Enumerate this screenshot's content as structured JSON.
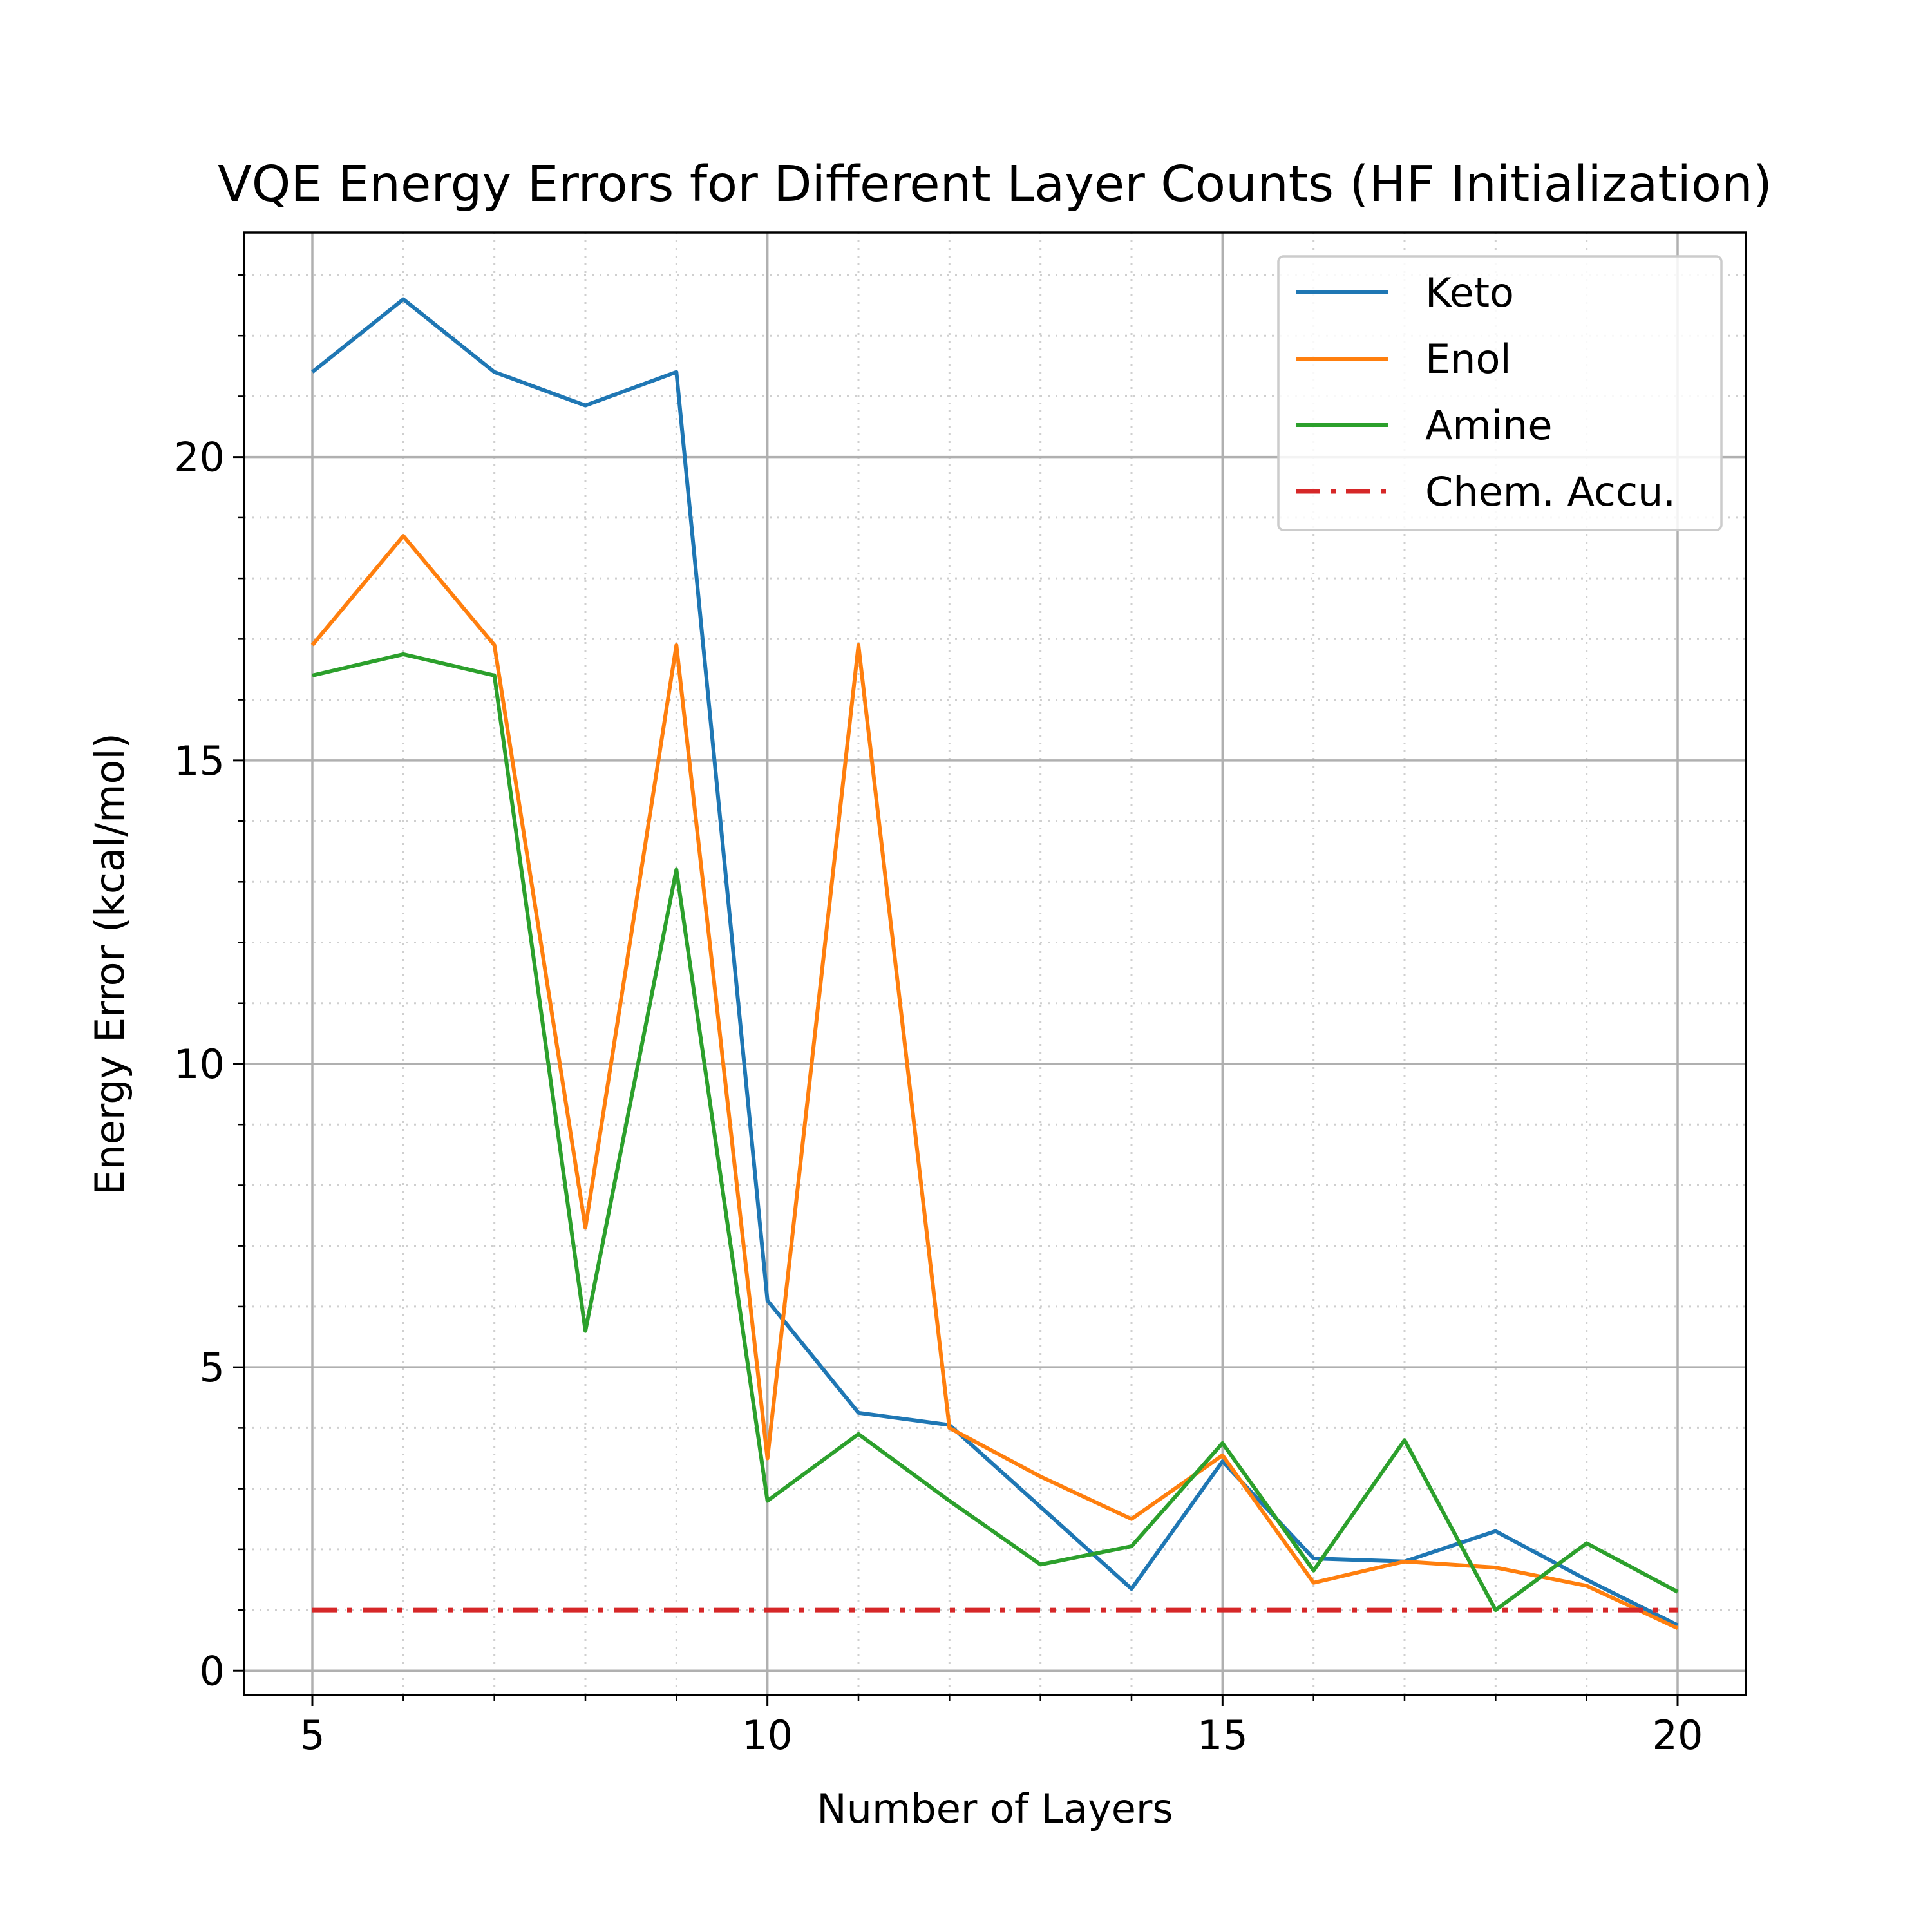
{
  "chart_data": {
    "type": "line",
    "title": "VQE Energy Errors for Different Layer Counts (HF Initialization)",
    "xlabel": "Number of Layers",
    "ylabel": "Energy Error (kcal/mol)",
    "xlim": [
      4.25,
      20.75
    ],
    "ylim": [
      -0.4,
      23.7
    ],
    "xticks": [
      5,
      10,
      15,
      20
    ],
    "xtick_labels": [
      "5",
      "10",
      "15",
      "20"
    ],
    "xminor": [
      6,
      7,
      8,
      9,
      11,
      12,
      13,
      14,
      16,
      17,
      18,
      19
    ],
    "yticks": [
      0,
      5,
      10,
      15,
      20
    ],
    "ytick_labels": [
      "0",
      "5",
      "10",
      "15",
      "20"
    ],
    "yminor": [
      1,
      2,
      3,
      4,
      6,
      7,
      8,
      9,
      11,
      12,
      13,
      14,
      16,
      17,
      18,
      19,
      21,
      22,
      23
    ],
    "grid": "major solid, minor dotted",
    "legend_position": "top-right",
    "x": [
      5,
      6,
      7,
      8,
      9,
      10,
      11,
      12,
      13,
      14,
      15,
      16,
      17,
      18,
      19,
      20
    ],
    "series": [
      {
        "name": "Keto",
        "color": "#1f77b4",
        "style": "solid",
        "values": [
          21.4,
          22.6,
          21.4,
          20.85,
          21.4,
          6.1,
          4.25,
          4.05,
          2.7,
          1.35,
          3.45,
          1.85,
          1.8,
          2.3,
          1.5,
          0.75
        ]
      },
      {
        "name": "Enol",
        "color": "#ff7f0e",
        "style": "solid",
        "values": [
          16.9,
          18.7,
          16.9,
          7.3,
          16.9,
          3.5,
          16.9,
          4.0,
          3.2,
          2.5,
          3.55,
          1.45,
          1.8,
          1.7,
          1.4,
          0.7
        ]
      },
      {
        "name": "Amine",
        "color": "#2ca02c",
        "style": "solid",
        "values": [
          16.4,
          16.75,
          16.4,
          5.6,
          13.2,
          2.8,
          3.9,
          2.8,
          1.75,
          2.05,
          3.75,
          1.65,
          3.8,
          1.0,
          2.1,
          1.3
        ]
      },
      {
        "name": "Chem. Accu.",
        "color": "#d62728",
        "style": "dashdot",
        "values": [
          1.0,
          1.0,
          1.0,
          1.0,
          1.0,
          1.0,
          1.0,
          1.0,
          1.0,
          1.0,
          1.0,
          1.0,
          1.0,
          1.0,
          1.0,
          1.0
        ]
      }
    ]
  }
}
